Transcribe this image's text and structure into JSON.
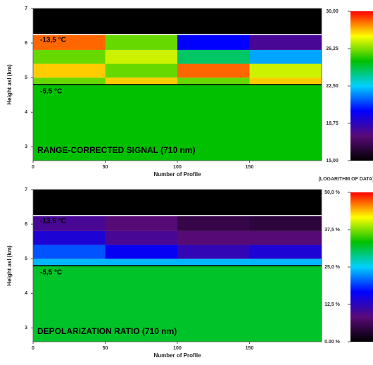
{
  "chart_data": [
    {
      "type": "heatmap",
      "title": "RANGE-CORRECTED SIGNAL (710 nm)",
      "xlabel": "Number of Profile",
      "ylabel": "Height asl (km)",
      "xlim": [
        0,
        200
      ],
      "xticks": [
        0,
        50,
        100,
        150
      ],
      "ylim": [
        2.6,
        7
      ],
      "yticks": [
        3,
        4,
        5,
        6,
        7
      ],
      "xbins": [
        0,
        50,
        100,
        150,
        200
      ],
      "ybins": [
        2.6,
        4.8,
        5.0,
        5.4,
        5.8,
        6.25,
        7
      ],
      "z": [
        [
          25,
          25,
          25,
          25
        ],
        [
          26,
          28,
          26,
          28
        ],
        [
          28,
          26,
          29,
          27
        ],
        [
          26,
          27,
          24,
          22
        ],
        [
          29,
          26,
          20,
          18
        ],
        [
          15,
          15,
          15,
          15
        ]
      ],
      "annotations": [
        {
          "text": "-13,5 °C",
          "y": 6.25,
          "color": "#ffffff"
        },
        {
          "text": "-5,5 °C",
          "y": 4.8,
          "color": "#000000"
        }
      ],
      "colorbar": {
        "lim": [
          15,
          30
        ],
        "ticks": [
          {
            "value": 15,
            "label": "15,00"
          },
          {
            "value": 18.75,
            "label": "18,75"
          },
          {
            "value": 22.5,
            "label": "22,50"
          },
          {
            "value": 26.25,
            "label": "26,25"
          },
          {
            "value": 30,
            "label": "30,00"
          }
        ],
        "label": "(LOGARITHM OF DATA)"
      },
      "colorscale": [
        "#000000",
        "#5a0a7a",
        "#0000ff",
        "#00d0ff",
        "#00c000",
        "#ffff00",
        "#ff0000"
      ]
    },
    {
      "type": "heatmap",
      "title": "DEPOLARIZATION RATIO (710 nm)",
      "xlabel": "Number of Profile",
      "ylabel": "Height asl (km)",
      "xlim": [
        0,
        200
      ],
      "xticks": [
        0,
        50,
        100,
        150
      ],
      "ylim": [
        2.6,
        7
      ],
      "yticks": [
        3,
        4,
        5,
        6,
        7
      ],
      "xbins": [
        0,
        50,
        100,
        150,
        200
      ],
      "ybins": [
        2.6,
        4.8,
        5.0,
        5.4,
        5.8,
        6.25,
        7
      ],
      "z": [
        [
          32,
          32,
          32,
          32
        ],
        [
          24,
          24,
          24,
          24
        ],
        [
          20,
          16,
          12,
          14
        ],
        [
          14,
          10,
          8,
          8
        ],
        [
          10,
          8,
          5,
          4
        ],
        [
          0,
          0,
          0,
          0
        ]
      ],
      "annotations": [
        {
          "text": "-13,5 °C",
          "y": 6.25,
          "color": "#ffffff"
        },
        {
          "text": "-5,5 °C",
          "y": 4.8,
          "color": "#000000"
        }
      ],
      "colorbar": {
        "lim": [
          0,
          50
        ],
        "ticks": [
          {
            "value": 0,
            "label": "0.00 %"
          },
          {
            "value": 12.5,
            "label": "12,5 %"
          },
          {
            "value": 25,
            "label": "25,0 %"
          },
          {
            "value": 37.5,
            "label": "37,5 %"
          },
          {
            "value": 50,
            "label": "50,0 %"
          }
        ]
      },
      "colorscale": [
        "#000000",
        "#5a0a7a",
        "#0000ff",
        "#00d0ff",
        "#00c000",
        "#ffff00",
        "#ff0000"
      ]
    }
  ]
}
